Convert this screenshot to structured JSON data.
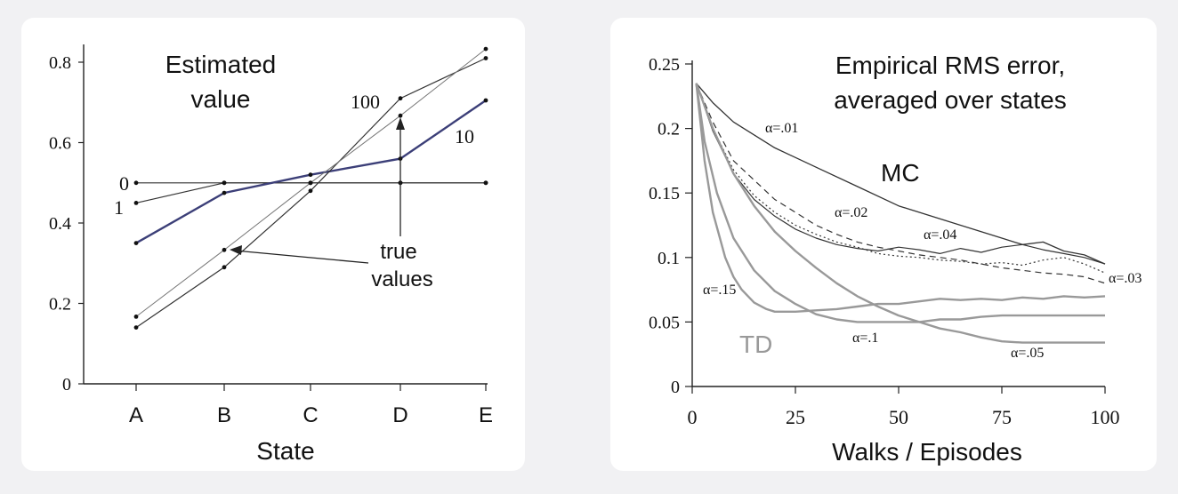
{
  "charts": [
    {
      "type": "line",
      "title_lines": [
        "Estimated",
        "value"
      ],
      "xlabel": "State",
      "ylabel": "",
      "categories": [
        "A",
        "B",
        "C",
        "D",
        "E"
      ],
      "ylim": [
        0,
        0.85
      ],
      "yticks": [
        0,
        0.2,
        0.4,
        0.6,
        0.8
      ],
      "ytick_labels": [
        "0",
        "0.2",
        "0.4",
        "0.6",
        "0.8"
      ],
      "series": [
        {
          "name": "0",
          "values": [
            0.5,
            0.5,
            0.5,
            0.5,
            0.5
          ],
          "color": "#333333",
          "width": 1.2
        },
        {
          "name": "1",
          "values": [
            0.45,
            0.5,
            0.5,
            0.5,
            0.5
          ],
          "color": "#333333",
          "width": 1.2
        },
        {
          "name": "10",
          "values": [
            0.35,
            0.475,
            0.52,
            0.56,
            0.705
          ],
          "color": "#3c3f78",
          "width": 2.4
        },
        {
          "name": "100",
          "values": [
            0.14,
            0.29,
            0.48,
            0.71,
            0.81
          ],
          "color": "#333333",
          "width": 1.2
        },
        {
          "name": "true values",
          "values": [
            0.167,
            0.333,
            0.5,
            0.667,
            0.833
          ],
          "color": "#777777",
          "width": 1.0
        }
      ],
      "annotation": {
        "lines": [
          "true",
          "values"
        ]
      }
    },
    {
      "type": "line",
      "title_lines": [
        "Empirical RMS error,",
        "averaged over states"
      ],
      "xlabel": "Walks / Episodes",
      "ylabel": "",
      "xlim": [
        0,
        100
      ],
      "ylim": [
        0,
        0.25
      ],
      "xticks": [
        0,
        25,
        50,
        75,
        100
      ],
      "xtick_labels": [
        "0",
        "25",
        "50",
        "75",
        "100"
      ],
      "yticks": [
        0,
        0.05,
        0.1,
        0.15,
        0.2,
        0.25
      ],
      "ytick_labels": [
        "0",
        "0.05",
        "0.1",
        "0.15",
        "0.2",
        "0.25"
      ],
      "group_labels": {
        "mc": "MC",
        "td": "TD"
      },
      "series": [
        {
          "name": "α=.01",
          "group": "MC",
          "style": "solid",
          "color": "#333333",
          "width": 1.3,
          "x": [
            1,
            5,
            10,
            20,
            30,
            40,
            50,
            60,
            70,
            75,
            80,
            85,
            90,
            95,
            100
          ],
          "y": [
            0.235,
            0.22,
            0.205,
            0.185,
            0.17,
            0.155,
            0.14,
            0.13,
            0.12,
            0.115,
            0.11,
            0.112,
            0.105,
            0.102,
            0.095
          ]
        },
        {
          "name": "α=.02",
          "group": "MC",
          "style": "dashed",
          "color": "#333333",
          "width": 1.2,
          "x": [
            1,
            5,
            10,
            15,
            20,
            25,
            30,
            35,
            40,
            45,
            50,
            55,
            60,
            65,
            70,
            75,
            80,
            85,
            90,
            95,
            100
          ],
          "y": [
            0.235,
            0.205,
            0.175,
            0.16,
            0.145,
            0.135,
            0.125,
            0.118,
            0.112,
            0.108,
            0.105,
            0.102,
            0.1,
            0.098,
            0.095,
            0.092,
            0.09,
            0.088,
            0.087,
            0.085,
            0.08
          ]
        },
        {
          "name": "α=.03",
          "group": "MC",
          "style": "dotted",
          "color": "#333333",
          "width": 1.2,
          "x": [
            1,
            5,
            10,
            15,
            20,
            25,
            30,
            35,
            40,
            45,
            50,
            55,
            60,
            65,
            70,
            75,
            80,
            85,
            90,
            95,
            100
          ],
          "y": [
            0.235,
            0.2,
            0.168,
            0.148,
            0.135,
            0.125,
            0.118,
            0.112,
            0.108,
            0.103,
            0.101,
            0.1,
            0.098,
            0.097,
            0.095,
            0.096,
            0.094,
            0.098,
            0.1,
            0.095,
            0.088
          ]
        },
        {
          "name": "α=.04",
          "group": "MC",
          "style": "solid",
          "color": "#333333",
          "width": 1.2,
          "x": [
            1,
            5,
            10,
            15,
            20,
            25,
            30,
            35,
            40,
            45,
            50,
            55,
            60,
            65,
            70,
            75,
            80,
            85,
            90,
            95,
            100
          ],
          "y": [
            0.235,
            0.198,
            0.165,
            0.145,
            0.132,
            0.122,
            0.115,
            0.11,
            0.107,
            0.105,
            0.108,
            0.106,
            0.103,
            0.107,
            0.104,
            0.108,
            0.11,
            0.106,
            0.103,
            0.1,
            0.095
          ]
        },
        {
          "name": "α=.05",
          "group": "TD",
          "style": "solid",
          "color": "#999999",
          "width": 2.4,
          "x": [
            1,
            5,
            10,
            15,
            20,
            25,
            30,
            35,
            40,
            45,
            50,
            55,
            60,
            65,
            70,
            75,
            80,
            85,
            90,
            95,
            100
          ],
          "y": [
            0.235,
            0.2,
            0.165,
            0.14,
            0.12,
            0.105,
            0.092,
            0.08,
            0.07,
            0.062,
            0.055,
            0.05,
            0.045,
            0.042,
            0.038,
            0.035,
            0.034,
            0.034,
            0.034,
            0.034,
            0.034
          ]
        },
        {
          "name": "α=.1",
          "group": "TD",
          "style": "solid",
          "color": "#999999",
          "width": 2.4,
          "x": [
            1,
            3,
            6,
            10,
            15,
            20,
            25,
            30,
            35,
            40,
            45,
            50,
            55,
            60,
            65,
            70,
            75,
            80,
            85,
            90,
            95,
            100
          ],
          "y": [
            0.235,
            0.19,
            0.15,
            0.115,
            0.09,
            0.074,
            0.064,
            0.056,
            0.052,
            0.05,
            0.05,
            0.05,
            0.05,
            0.052,
            0.052,
            0.054,
            0.055,
            0.055,
            0.055,
            0.055,
            0.055,
            0.055
          ]
        },
        {
          "name": "α=.15",
          "group": "TD",
          "style": "solid",
          "color": "#999999",
          "width": 2.4,
          "x": [
            1,
            3,
            5,
            8,
            10,
            12,
            15,
            18,
            20,
            25,
            30,
            35,
            40,
            45,
            50,
            55,
            60,
            65,
            70,
            75,
            80,
            85,
            90,
            95,
            100
          ],
          "y": [
            0.235,
            0.175,
            0.135,
            0.1,
            0.085,
            0.075,
            0.065,
            0.06,
            0.058,
            0.058,
            0.059,
            0.06,
            0.062,
            0.064,
            0.064,
            0.066,
            0.068,
            0.067,
            0.068,
            0.067,
            0.069,
            0.068,
            0.07,
            0.069,
            0.07
          ]
        }
      ]
    }
  ]
}
